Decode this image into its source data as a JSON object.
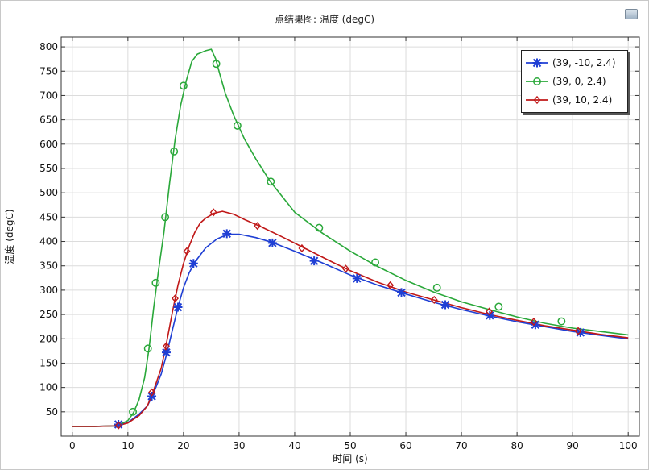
{
  "window": {
    "title": "点结果图: 温度 (degC)",
    "icon": "plot-window-icon"
  },
  "chart_data": {
    "type": "line",
    "title": "点结果图: 温度 (degC)",
    "xlabel": "时间 (s)",
    "ylabel": "温度 (degC)",
    "xlim": [
      -2,
      102
    ],
    "ylim": [
      0,
      820
    ],
    "xticks": [
      0,
      10,
      20,
      30,
      40,
      50,
      60,
      70,
      80,
      90,
      100
    ],
    "yticks": [
      50,
      100,
      150,
      200,
      250,
      300,
      350,
      400,
      450,
      500,
      550,
      600,
      650,
      700,
      750,
      800
    ],
    "grid": true,
    "legend_position": "top-right",
    "series": [
      {
        "name": "(39, -10, 2.4)",
        "color": "#1f3fd4",
        "marker": "asterisk",
        "x": [
          0,
          4,
          8,
          10,
          12,
          13.5,
          14.5,
          16,
          17,
          18,
          19,
          20,
          21,
          22,
          24,
          26,
          28,
          30,
          33,
          36,
          40,
          45,
          50,
          55,
          60,
          65,
          70,
          75,
          80,
          85,
          90,
          95,
          100
        ],
        "y": [
          20,
          20,
          21,
          28,
          45,
          62,
          85,
          128,
          170,
          218,
          265,
          305,
          335,
          357,
          387,
          405,
          415,
          415,
          408,
          398,
          380,
          356,
          331,
          310,
          292,
          275,
          260,
          247,
          235,
          225,
          215,
          207,
          200
        ],
        "markers_x": [
          8.3,
          14.3,
          16.9,
          19.0,
          21.8,
          27.8,
          36.0,
          43.5,
          51.2,
          59.2,
          67.1,
          75.1,
          83.3,
          91.4
        ],
        "markers_y": [
          24,
          82,
          172,
          265,
          355,
          416,
          397,
          360,
          324,
          295,
          270,
          248,
          229,
          213
        ]
      },
      {
        "name": "(39, 0, 2.4)",
        "color": "#2aa83a",
        "marker": "circle",
        "x": [
          0,
          4,
          8,
          10,
          11,
          12,
          13,
          13.8,
          14.6,
          15.5,
          16.5,
          17.5,
          18.5,
          19.5,
          20.5,
          21.5,
          22.5,
          24,
          25,
          25.8,
          26.5,
          27.5,
          29,
          31,
          33,
          35.5,
          40,
          45,
          50,
          55,
          60,
          65,
          70,
          75,
          80,
          85,
          90,
          95,
          100
        ],
        "y": [
          20,
          20,
          21,
          32,
          48,
          75,
          120,
          180,
          260,
          340,
          420,
          520,
          610,
          680,
          730,
          770,
          785,
          792,
          795,
          775,
          745,
          705,
          660,
          610,
          570,
          525,
          460,
          417,
          380,
          348,
          320,
          296,
          276,
          260,
          245,
          232,
          222,
          215,
          208
        ],
        "markers_x": [
          10.9,
          13.6,
          15.0,
          16.7,
          18.3,
          20.0,
          25.9,
          29.7,
          35.7,
          44.4,
          54.5,
          65.6,
          76.7,
          88.0
        ],
        "markers_y": [
          50,
          180,
          315,
          450,
          585,
          720,
          765,
          638,
          523,
          428,
          357,
          305,
          266,
          236
        ]
      },
      {
        "name": "(39, 10, 2.4)",
        "color": "#c01818",
        "marker": "diamond",
        "x": [
          0,
          4,
          8,
          10,
          12,
          13.5,
          14.5,
          16,
          17,
          18,
          19,
          20,
          21,
          22,
          23,
          24,
          25.5,
          27,
          29,
          31,
          34,
          38,
          42,
          46,
          50,
          55,
          60,
          65,
          70,
          75,
          80,
          85,
          90,
          95,
          100
        ],
        "y": [
          20,
          20,
          21,
          27,
          42,
          62,
          90,
          140,
          195,
          255,
          310,
          355,
          390,
          418,
          438,
          448,
          458,
          462,
          456,
          445,
          430,
          408,
          385,
          362,
          340,
          316,
          296,
          280,
          264,
          250,
          238,
          227,
          218,
          209,
          202
        ],
        "markers_x": [
          8.3,
          14.3,
          16.9,
          18.5,
          20.6,
          25.4,
          33.3,
          41.3,
          49.2,
          57.2,
          65.1,
          75.0,
          83.0,
          91.0
        ],
        "markers_y": [
          22,
          90,
          185,
          283,
          380,
          460,
          432,
          386,
          344,
          310,
          280,
          256,
          235,
          216
        ]
      }
    ]
  }
}
